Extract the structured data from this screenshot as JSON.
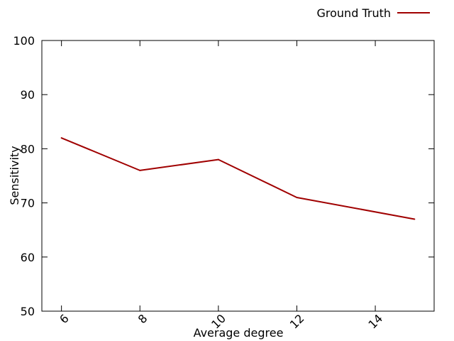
{
  "chart_data": {
    "type": "line",
    "x": [
      6,
      8,
      10,
      12,
      15
    ],
    "series": [
      {
        "name": "Ground Truth",
        "color": "#a00000",
        "values": [
          82,
          76,
          78,
          71,
          67
        ]
      }
    ],
    "xlabel": "Average degree",
    "ylabel": "Sensitivity",
    "xlim": [
      5.5,
      15.5
    ],
    "ylim": [
      50,
      100
    ],
    "xticks": [
      6,
      8,
      10,
      12,
      14
    ],
    "xtick_labels": [
      "6",
      "8",
      "10",
      "12",
      "14"
    ],
    "yticks": [
      50,
      60,
      70,
      80,
      90,
      100
    ],
    "ytick_labels": [
      "50",
      "60",
      "70",
      "80",
      "90",
      "100"
    ],
    "grid": false,
    "legend_position": "top-right, outside plot"
  }
}
